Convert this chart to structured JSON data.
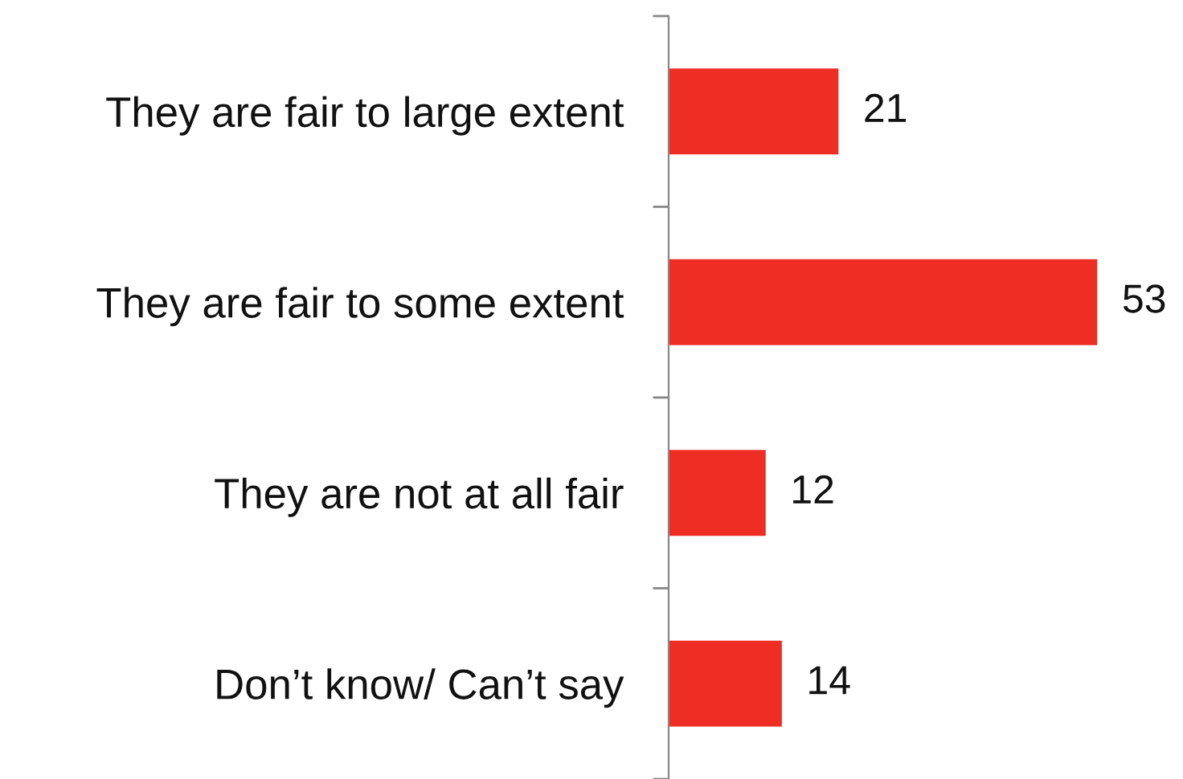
{
  "chart_data": {
    "type": "bar",
    "orientation": "horizontal",
    "categories": [
      "They are fair to large extent",
      "They are fair to some extent",
      "They are not at all fair",
      "Don’t know/ Can’t say"
    ],
    "values": [
      21,
      53,
      12,
      14
    ],
    "color": "#ee2e24",
    "data_labels": true
  }
}
